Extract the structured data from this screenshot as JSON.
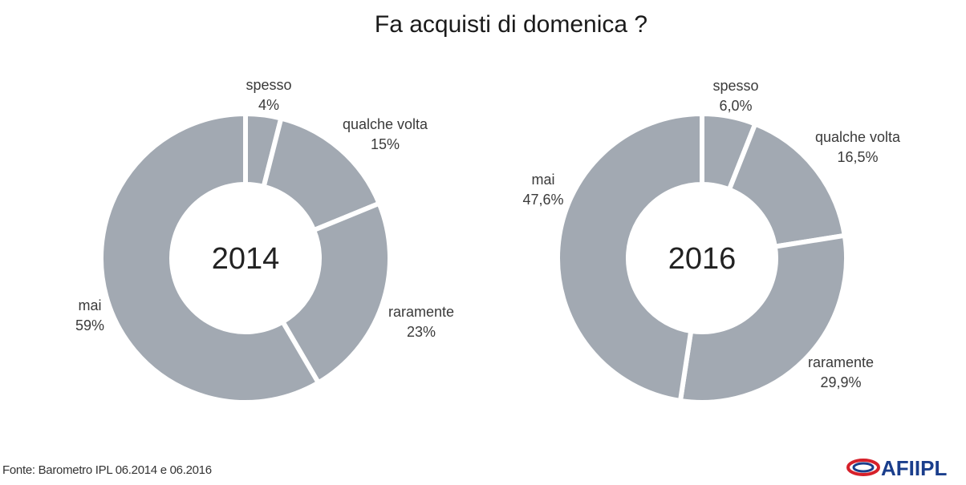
{
  "title": "Fa acquisti di domenica ?",
  "source": "Fonte: Barometro IPL 06.2014 e 06.2016",
  "logo_text": "AFIIPL",
  "colors": {
    "slice": "#a2a9b2",
    "logo_red": "#d6202a",
    "logo_blue": "#1a3e8c"
  },
  "chart_data": [
    {
      "type": "pie",
      "center_label": "2014",
      "slices": [
        {
          "label": "spesso",
          "value_text": "4%",
          "value": 4
        },
        {
          "label": "qualche volta",
          "value_text": "15%",
          "value": 15
        },
        {
          "label": "raramente",
          "value_text": "23%",
          "value": 23
        },
        {
          "label": "mai",
          "value_text": "59%",
          "value": 59
        }
      ]
    },
    {
      "type": "pie",
      "center_label": "2016",
      "slices": [
        {
          "label": "spesso",
          "value_text": "6,0%",
          "value": 6.0
        },
        {
          "label": "qualche volta",
          "value_text": "16,5%",
          "value": 16.5
        },
        {
          "label": "raramente",
          "value_text": "29,9%",
          "value": 29.9
        },
        {
          "label": "mai",
          "value_text": "47,6%",
          "value": 47.6
        }
      ]
    }
  ]
}
